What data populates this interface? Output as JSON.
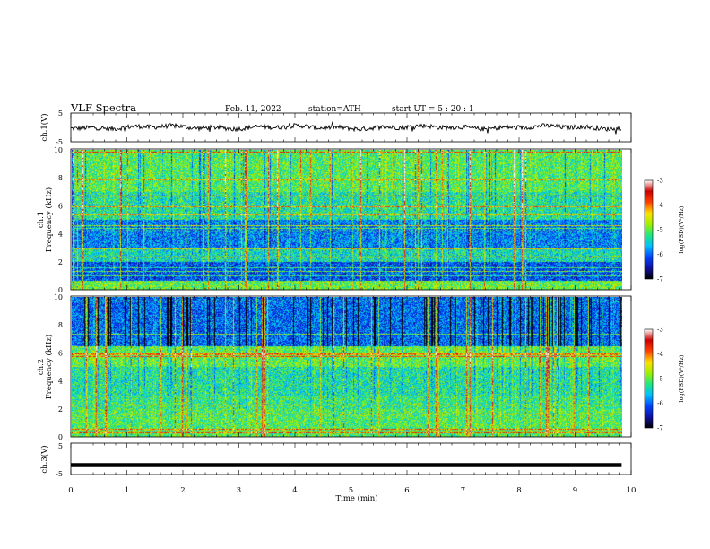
{
  "header": {
    "title": "VLF  Spectra",
    "date": "Feb. 11, 2022",
    "station": "station=ATH",
    "start": "start  UT  =   5  : 20 : 1"
  },
  "colorbar": {
    "label": "log(PSD)(V²/Hz)",
    "ticks": [
      -3,
      -4,
      -5,
      -6,
      -7
    ],
    "range": [
      -7,
      -3
    ],
    "colors": [
      "#000000",
      "#1010a0",
      "#0044ff",
      "#00c0ff",
      "#20e880",
      "#a0f000",
      "#ffe000",
      "#ff4000",
      "#cc0000",
      "#ffffff"
    ]
  },
  "chart_data": [
    {
      "type": "line",
      "panel": "ch1-waveform",
      "ylabel": "ch.1(V)",
      "ylim": [
        -5,
        5
      ],
      "yticks": [
        5,
        -5
      ],
      "xlim": [
        0,
        10
      ],
      "end_x": 9.83,
      "series": [
        {
          "baseline": 0.0,
          "amplitude": 1.0
        }
      ]
    },
    {
      "type": "heatmap",
      "panel": "ch1-spectrogram",
      "ylabel_line1": "ch.1",
      "ylabel_line2": "Frequency (kHz)",
      "ylim": [
        0,
        10
      ],
      "yticks": [
        0,
        2,
        4,
        6,
        8,
        10
      ],
      "xlim": [
        0,
        10
      ],
      "end_x": 9.83,
      "z_range": [
        -7,
        -3
      ]
    },
    {
      "type": "heatmap",
      "panel": "ch2-spectrogram",
      "ylabel_line1": "ch.2",
      "ylabel_line2": "Frequency (kHz)",
      "ylim": [
        0,
        10
      ],
      "yticks": [
        0,
        2,
        4,
        6,
        8,
        10
      ],
      "xlim": [
        0,
        10
      ],
      "end_x": 9.83,
      "z_range": [
        -7,
        -3
      ]
    },
    {
      "type": "line",
      "panel": "ch3-waveform",
      "ylabel": "ch.3(V)",
      "xlabel": "Time  (min)",
      "ylim": [
        -5,
        5
      ],
      "yticks": [
        5,
        -5
      ],
      "xlim": [
        0,
        10
      ],
      "xticks": [
        0,
        1,
        2,
        3,
        4,
        5,
        6,
        7,
        8,
        9,
        10
      ],
      "end_x": 9.83,
      "series": [
        {
          "baseline": -2.0,
          "amplitude": 0.0
        }
      ]
    }
  ]
}
